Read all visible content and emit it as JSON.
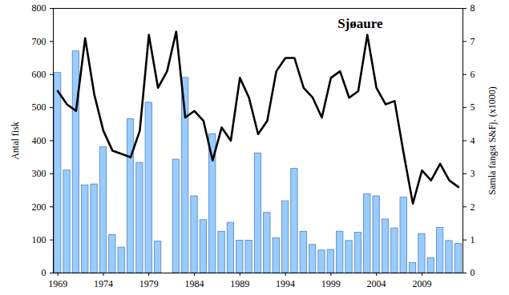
{
  "chart_data": {
    "type": "bar",
    "title": "Sjøaure",
    "y_label": "Antal fisk",
    "y2_label": "Samla fangst S&Fj. (x1000)",
    "x": [
      1969,
      1970,
      1971,
      1972,
      1973,
      1974,
      1975,
      1976,
      1977,
      1978,
      1979,
      1980,
      1981,
      1982,
      1983,
      1984,
      1985,
      1986,
      1987,
      1988,
      1989,
      1990,
      1991,
      1992,
      1993,
      1994,
      1995,
      1996,
      1997,
      1998,
      1999,
      2000,
      2001,
      2002,
      2003,
      2004,
      2005,
      2006,
      2007,
      2008,
      2009,
      2010,
      2011,
      2012,
      2013
    ],
    "xlim": [
      1968.5,
      2013.5
    ],
    "xticks": [
      1969,
      1974,
      1979,
      1984,
      1989,
      1994,
      1999,
      2004,
      2009
    ],
    "ylim": [
      0,
      800
    ],
    "yticks": [
      0,
      100,
      200,
      300,
      400,
      500,
      600,
      700,
      800
    ],
    "y2lim": [
      0,
      8
    ],
    "y2ticks": [
      0,
      1,
      2,
      3,
      4,
      5,
      6,
      7,
      8
    ],
    "series": [
      {
        "type": "bar",
        "color": "#99ccff",
        "values": [
          605,
          310,
          670,
          265,
          268,
          380,
          115,
          77,
          465,
          333,
          515,
          95,
          null,
          343,
          590,
          232,
          160,
          420,
          125,
          152,
          98,
          98,
          362,
          182,
          105,
          217,
          315,
          125,
          85,
          68,
          70,
          125,
          97,
          122,
          238,
          232,
          162,
          135,
          228,
          30,
          118,
          45,
          137,
          97,
          88
        ]
      },
      {
        "type": "line",
        "axis": "y2",
        "color": "#000000",
        "values": [
          5.5,
          5.1,
          4.9,
          7.1,
          5.4,
          4.3,
          3.7,
          3.6,
          3.5,
          4.3,
          7.2,
          5.6,
          6.1,
          7.3,
          4.7,
          4.9,
          4.6,
          3.4,
          4.4,
          4.0,
          5.9,
          5.3,
          4.2,
          4.6,
          6.1,
          6.5,
          6.5,
          5.6,
          5.3,
          4.7,
          5.9,
          6.1,
          5.3,
          5.5,
          7.2,
          5.6,
          5.1,
          5.2,
          3.6,
          2.1,
          3.1,
          2.8,
          3.3,
          2.8,
          2.6
        ]
      }
    ]
  }
}
